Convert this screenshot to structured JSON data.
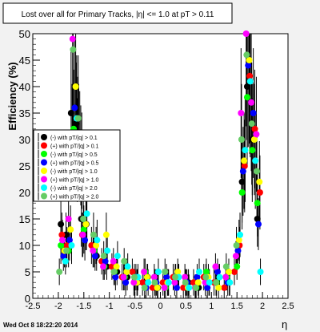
{
  "chart_data": {
    "type": "scatter",
    "title": "Lost over all for Primary Tracks, |η| <= 1.0 at pT > 0.11",
    "xlabel": "η",
    "ylabel": "Efficiency (%)",
    "xlim": [
      -2.5,
      2.5
    ],
    "ylim": [
      0,
      50
    ],
    "x_ticks": [
      -2.5,
      -2,
      -1.5,
      -1,
      -0.5,
      0,
      0.5,
      1,
      1.5,
      2,
      2.5
    ],
    "y_ticks": [
      0,
      5,
      10,
      15,
      20,
      25,
      30,
      35,
      40,
      45,
      50
    ],
    "legend_position": "left",
    "footer": "Wed Oct  8 18:22:20 2014",
    "series": [
      {
        "name": "(-) with pT/|q| > 0.1",
        "color": "#000000",
        "x": [
          -1.95,
          -1.85,
          -1.75,
          -1.65,
          -1.55,
          -1.45,
          -1.25,
          -1.05,
          -0.85,
          -0.65,
          -0.45,
          -0.25,
          -0.05,
          0.15,
          0.35,
          0.55,
          0.75,
          0.95,
          1.15,
          1.35,
          1.5,
          1.6,
          1.7,
          1.8,
          1.9
        ],
        "y": [
          14,
          12,
          35,
          33,
          15,
          14,
          8,
          6,
          5,
          4,
          3,
          4,
          2,
          3,
          4,
          3,
          2,
          3,
          4,
          3,
          8,
          22,
          40,
          30,
          15
        ]
      },
      {
        "name": "(+) with pT/|q| > 0.1",
        "color": "#ff0000",
        "x": [
          -1.93,
          -1.83,
          -1.73,
          -1.63,
          -1.53,
          -1.35,
          -1.15,
          -0.95,
          -0.75,
          -0.55,
          -0.35,
          -0.15,
          0.05,
          0.25,
          0.45,
          0.65,
          0.85,
          1.05,
          1.25,
          1.45,
          1.55,
          1.65,
          1.75,
          1.85,
          1.95
        ],
        "y": [
          12,
          10,
          30,
          28,
          12,
          10,
          7,
          6,
          4,
          5,
          3,
          2,
          3,
          4,
          2,
          3,
          4,
          3,
          2,
          5,
          10,
          25,
          42,
          32,
          20
        ]
      },
      {
        "name": "(-) with pT/|q| > 0.5",
        "color": "#00ff00",
        "x": [
          -1.95,
          -1.8,
          -1.7,
          -1.6,
          -1.5,
          -1.3,
          -1.1,
          -0.9,
          -0.7,
          -0.5,
          -0.3,
          -0.1,
          0.1,
          0.3,
          0.5,
          0.7,
          0.9,
          1.1,
          1.3,
          1.5,
          1.6,
          1.7,
          1.8,
          1.9
        ],
        "y": [
          10,
          9,
          32,
          30,
          13,
          9,
          6,
          5,
          4,
          3,
          5,
          3,
          2,
          4,
          3,
          2,
          5,
          3,
          4,
          6,
          20,
          38,
          28,
          18
        ]
      },
      {
        "name": "(+) with pT/|q| > 0.5",
        "color": "#0000ff",
        "x": [
          -1.9,
          -1.78,
          -1.68,
          -1.58,
          -1.48,
          -1.28,
          -1.08,
          -0.88,
          -0.68,
          -0.48,
          -0.28,
          -0.08,
          0.12,
          0.32,
          0.52,
          0.72,
          0.92,
          1.12,
          1.32,
          1.52,
          1.62,
          1.72,
          1.82,
          1.92
        ],
        "y": [
          8,
          11,
          36,
          29,
          11,
          8,
          7,
          4,
          3,
          4,
          2,
          3,
          4,
          2,
          3,
          4,
          2,
          5,
          3,
          9,
          24,
          44,
          35,
          14
        ]
      },
      {
        "name": "(-) with pT/|q| > 1.0",
        "color": "#ffff00",
        "x": [
          -1.88,
          -1.76,
          -1.66,
          -1.56,
          -1.46,
          -1.26,
          -1.06,
          -0.86,
          -0.66,
          -0.46,
          -0.26,
          -0.06,
          0.14,
          0.34,
          0.54,
          0.74,
          0.94,
          1.14,
          1.34,
          1.54,
          1.64,
          1.74,
          1.84,
          1.94
        ],
        "y": [
          9,
          13,
          40,
          27,
          14,
          10,
          12,
          6,
          5,
          3,
          4,
          2,
          3,
          5,
          2,
          3,
          4,
          2,
          5,
          11,
          26,
          45,
          30,
          22
        ]
      },
      {
        "name": "(+) with pT/|q| > 1.0",
        "color": "#ff00ff",
        "x": [
          -1.92,
          -1.8,
          -1.72,
          -1.62,
          -1.52,
          -1.32,
          -1.12,
          -0.92,
          -0.72,
          -0.52,
          -0.32,
          -0.12,
          0.08,
          0.28,
          0.48,
          0.68,
          0.88,
          1.08,
          1.28,
          1.48,
          1.58,
          1.68,
          1.78,
          1.88
        ],
        "y": [
          11,
          15,
          49,
          31,
          12,
          9,
          6,
          7,
          4,
          3,
          5,
          4,
          2,
          3,
          4,
          2,
          3,
          6,
          4,
          8,
          35,
          50,
          37,
          31
        ]
      },
      {
        "name": "(-) with pT/|q| > 2.0",
        "color": "#00ffff",
        "x": [
          -1.86,
          -1.74,
          -1.64,
          -1.54,
          -1.44,
          -1.24,
          -1.04,
          -0.84,
          -0.64,
          -0.44,
          -0.24,
          -0.04,
          0.16,
          0.36,
          0.56,
          0.76,
          0.96,
          1.16,
          1.36,
          1.56,
          1.66,
          1.76,
          1.86,
          1.96
        ],
        "y": [
          7,
          10,
          34,
          26,
          16,
          11,
          9,
          8,
          6,
          4,
          3,
          5,
          3,
          4,
          2,
          5,
          3,
          4,
          3,
          12,
          28,
          41,
          26,
          5
        ]
      },
      {
        "name": "(+) with pT/|q| > 2.0",
        "color": "#66cc66",
        "x": [
          -1.98,
          -1.84,
          -1.71,
          -1.61,
          -1.51,
          -1.31,
          -1.11,
          -0.91,
          -0.71,
          -0.51,
          -0.31,
          -0.11,
          0.09,
          0.29,
          0.49,
          0.69,
          0.89,
          1.09,
          1.29,
          1.49,
          1.59,
          1.69,
          1.79,
          1.89
        ],
        "y": [
          5,
          9,
          47,
          34,
          15,
          12,
          8,
          5,
          7,
          4,
          2,
          3,
          5,
          4,
          3,
          2,
          4,
          3,
          6,
          10,
          30,
          46,
          33,
          24
        ]
      }
    ]
  }
}
